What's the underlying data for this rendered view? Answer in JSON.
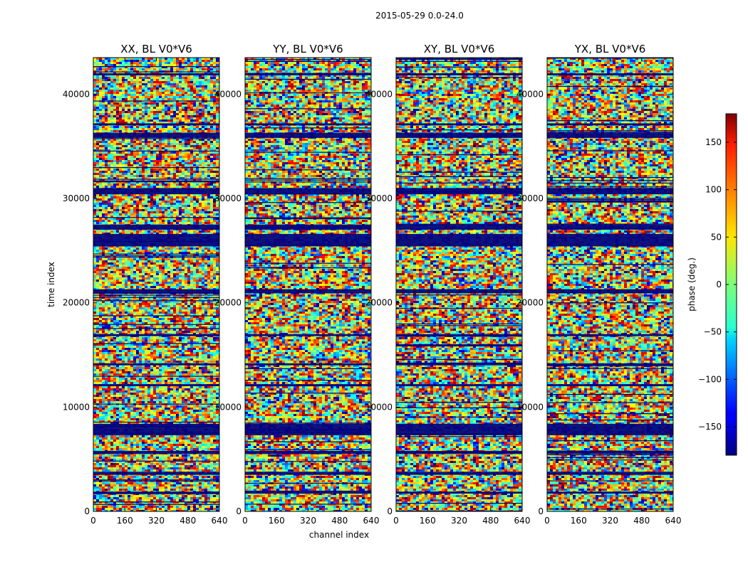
{
  "chart_data": {
    "type": "heatmap",
    "suptitle": "2015-05-29 0.0-24.0",
    "colormap": "jet",
    "xlabel": "channel index",
    "ylabel": "time index",
    "xlim": [
      0,
      640
    ],
    "ylim": [
      0,
      43500
    ],
    "xticks": [
      0,
      160,
      320,
      480,
      640
    ],
    "yticks": [
      0,
      10000,
      20000,
      30000,
      40000
    ],
    "colorbar": {
      "label": "phase (deg.)",
      "range": [
        -180,
        180
      ],
      "ticks": [
        -150,
        -100,
        -50,
        0,
        50,
        100,
        150
      ],
      "tick_labels": [
        "−150",
        "−100",
        "−50",
        "0",
        "50",
        "100",
        "150"
      ]
    },
    "panels": [
      {
        "title": "XX, BL V0*V6",
        "seed": 11
      },
      {
        "title": "YY, BL V0*V6",
        "seed": 23
      },
      {
        "title": "XY, BL V0*V6",
        "seed": 37
      },
      {
        "title": "YX, BL V0*V6",
        "seed": 51
      }
    ],
    "flagged_bands_time": [
      [
        7300,
        8400
      ],
      [
        27000,
        27500
      ],
      [
        25400,
        26600
      ],
      [
        41800,
        42000
      ],
      [
        37000,
        37200
      ],
      [
        35800,
        36300
      ],
      [
        30400,
        31000
      ],
      [
        1700,
        1900
      ],
      [
        20900,
        21300
      ],
      [
        16800,
        17000
      ],
      [
        14000,
        14200
      ],
      [
        12000,
        12200
      ],
      [
        3500,
        3800
      ],
      [
        5500,
        5800
      ]
    ]
  }
}
